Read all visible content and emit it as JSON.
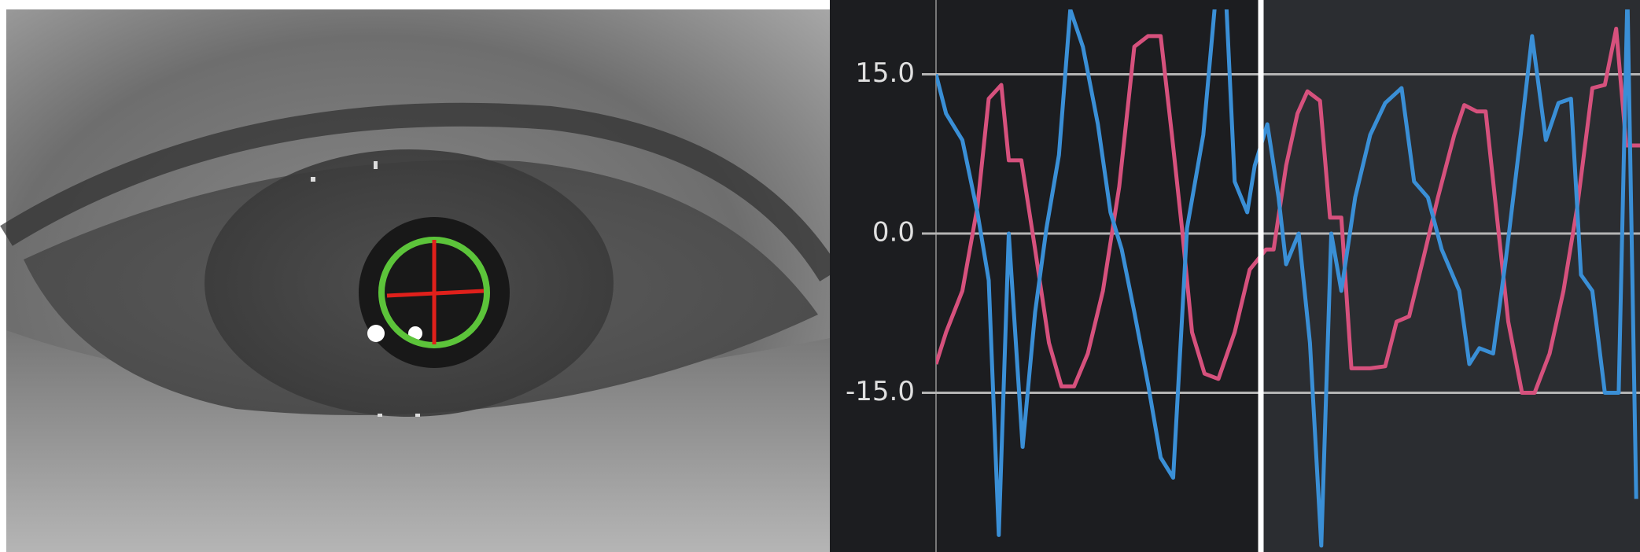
{
  "chart_data": {
    "type": "line",
    "xlim": [
      0,
      56.1
    ],
    "ylim": [
      -30,
      22
    ],
    "yticks": [
      {
        "value": 15,
        "label": "15.0"
      },
      {
        "value": 0,
        "label": "0.0"
      },
      {
        "value": -15,
        "label": "-15.0"
      }
    ],
    "grid": true,
    "series": [
      {
        "color": "#d6517d",
        "x": [
          0,
          0.8,
          2.1,
          3.3,
          4.2,
          5.2,
          5.8,
          6.8,
          7.9,
          9.0,
          10.0,
          11.0,
          12.1,
          13.3,
          14.6,
          15.8,
          16.9,
          17.9,
          18.8,
          19.6,
          20.4,
          21.4,
          22.5,
          23.8,
          25.0,
          26.3,
          26.9,
          27.9,
          28.8,
          29.6,
          30.6,
          31.4,
          32.3,
          33.1,
          34.6,
          35.8,
          36.7,
          37.7,
          38.8,
          40.0,
          41.3,
          42.1,
          43.1,
          43.8,
          44.8,
          45.6,
          46.7,
          47.7,
          48.9,
          50.0,
          51.1,
          52.3,
          53.3,
          54.2,
          55.0,
          56.1
        ],
        "values": [
          -12.3,
          -9.3,
          -5.4,
          2.5,
          12.7,
          14.0,
          6.9,
          6.9,
          -1.5,
          -10.3,
          -14.4,
          -14.4,
          -11.3,
          -5.4,
          4.4,
          17.6,
          18.6,
          18.6,
          9.3,
          0.5,
          -9.3,
          -13.2,
          -13.7,
          -9.3,
          -3.4,
          -1.5,
          -1.5,
          6.4,
          11.3,
          13.4,
          12.5,
          1.5,
          1.5,
          -12.7,
          -12.7,
          -12.5,
          -8.3,
          -7.8,
          -2.5,
          3.4,
          9.3,
          12.1,
          11.5,
          11.5,
          0.5,
          -8.3,
          -15.0,
          -15.0,
          -11.3,
          -5.4,
          2.5,
          13.7,
          14.0,
          19.3,
          8.3,
          8.3
        ]
      },
      {
        "color": "#3a8fd6",
        "x": [
          0,
          0.8,
          2.1,
          3.3,
          4.2,
          5.0,
          5.8,
          6.9,
          7.9,
          8.8,
          9.8,
          10.7,
          11.7,
          12.9,
          13.9,
          14.8,
          15.8,
          16.9,
          17.9,
          18.9,
          20.0,
          21.3,
          22.3,
          23.1,
          23.8,
          24.8,
          25.4,
          26.4,
          27.3,
          27.9,
          28.9,
          29.8,
          30.7,
          31.5,
          32.3,
          33.4,
          34.6,
          35.8,
          37.1,
          38.1,
          39.2,
          40.3,
          41.7,
          42.5,
          43.3,
          44.4,
          45.4,
          46.5,
          47.5,
          48.6,
          49.6,
          50.6,
          51.4,
          52.3,
          53.3,
          54.4,
          55.1,
          55.8
        ],
        "values": [
          15.0,
          11.3,
          8.8,
          2.0,
          -4.4,
          -28.4,
          0.0,
          -20.1,
          -7.4,
          0.5,
          7.4,
          21.1,
          17.6,
          10.3,
          2.0,
          -1.5,
          -7.4,
          -14.2,
          -21.1,
          -23.0,
          0.5,
          9.3,
          22.5,
          22.5,
          4.9,
          2.0,
          6.4,
          10.3,
          3.4,
          -2.9,
          0.0,
          -10.3,
          -29.4,
          0.0,
          -5.4,
          3.4,
          9.3,
          12.3,
          13.7,
          4.9,
          3.4,
          -1.5,
          -5.4,
          -12.3,
          -10.8,
          -11.3,
          -2.5,
          8.3,
          18.6,
          8.8,
          12.3,
          12.7,
          -3.9,
          -5.4,
          -15.0,
          -15.0,
          22.5,
          -25.0
        ]
      }
    ]
  }
}
